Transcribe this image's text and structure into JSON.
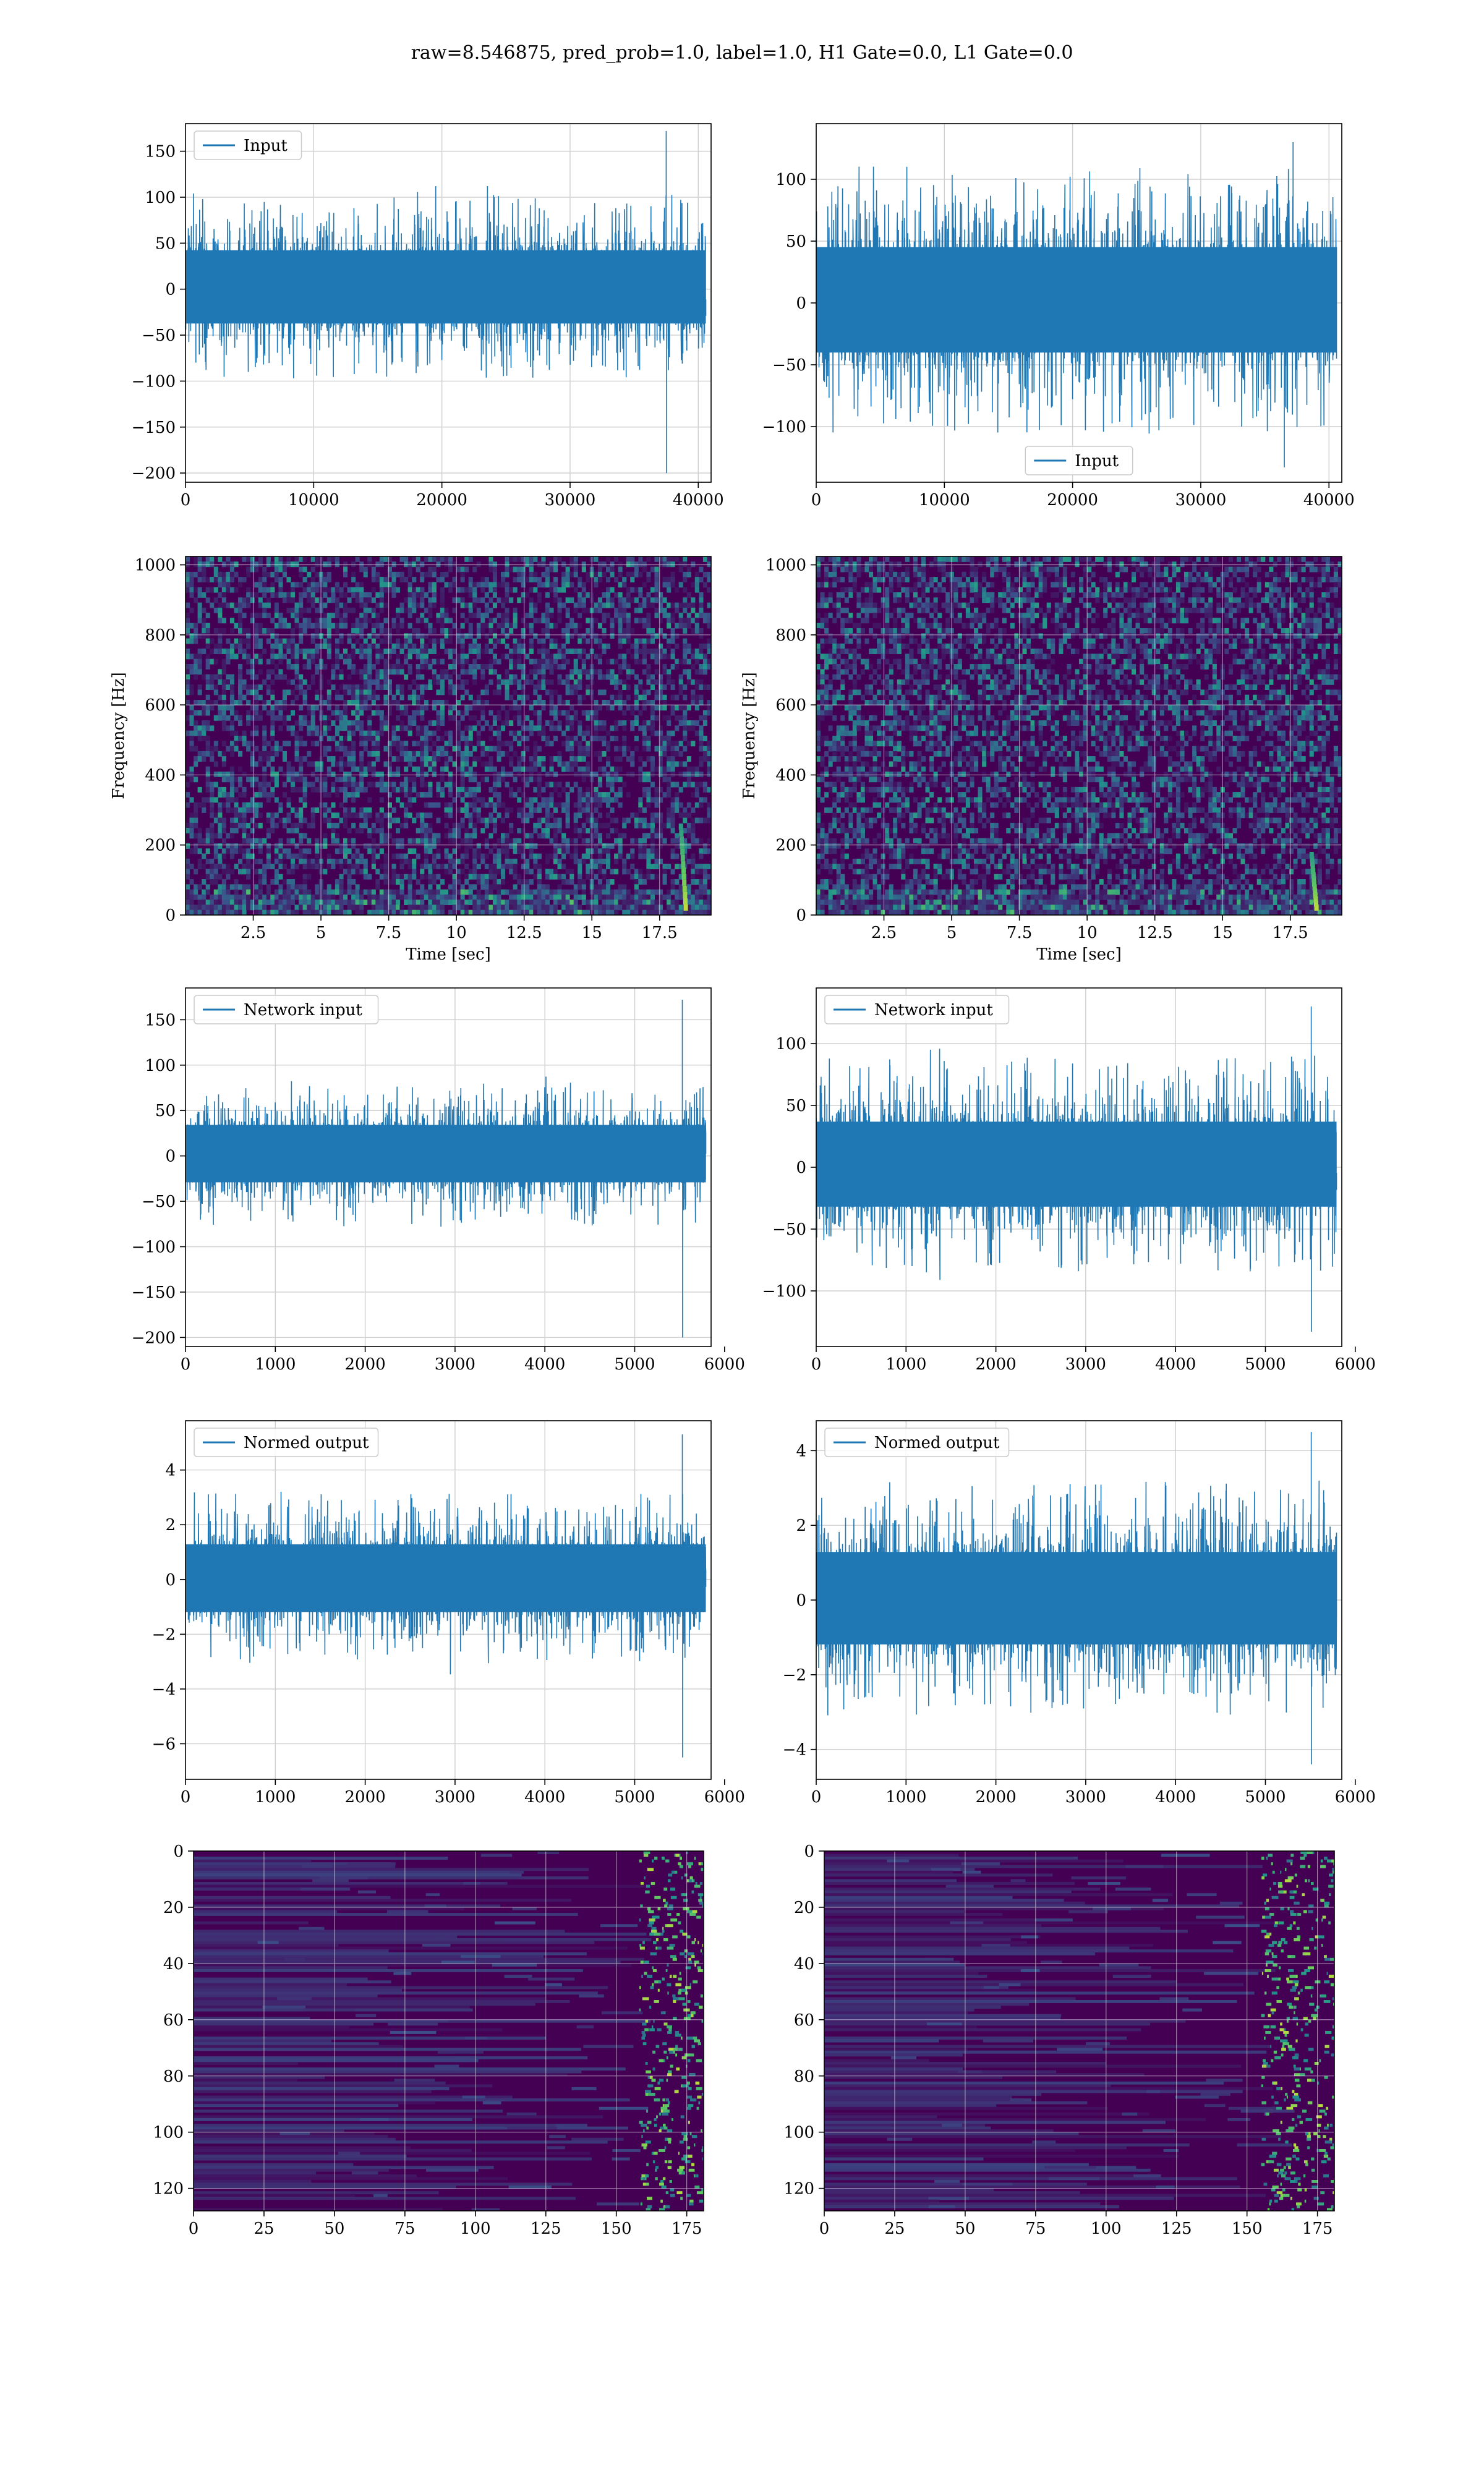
{
  "figure": {
    "title": "raw=8.546875, pred_prob=1.0, label=1.0, H1 Gate=0.0, L1 Gate=0.0"
  },
  "colors": {
    "series": "#1f77b4",
    "grid": "#d0d0d0",
    "axes": "#000000",
    "viridis_dark": "#440154",
    "viridis_mid": "#21918c",
    "viridis_bright": "#fde725"
  },
  "chart_data": [
    {
      "type": "line",
      "panel": "row1-left",
      "series": [
        {
          "name": "Input",
          "envelope": {
            "lo": -70,
            "hi": 75,
            "spikes_hi": [
              [
                37500,
                172
              ]
            ],
            "spikes_lo": [
              [
                37500,
                -200
              ]
            ]
          }
        }
      ],
      "x_range": [
        0,
        41000
      ],
      "ylim": [
        -210,
        180
      ],
      "xticks": [
        0,
        10000,
        20000,
        30000,
        40000
      ],
      "yticks": [
        -200,
        -150,
        -100,
        -50,
        0,
        50,
        100,
        150
      ],
      "xlabel": "",
      "ylabel": "",
      "grid": true,
      "legend": "upper left"
    },
    {
      "type": "line",
      "panel": "row1-right",
      "series": [
        {
          "name": "Input",
          "envelope": {
            "lo": -75,
            "hi": 80,
            "spikes_hi": [
              [
                37200,
                130
              ]
            ],
            "spikes_lo": [
              [
                36500,
                -133
              ]
            ]
          }
        }
      ],
      "x_range": [
        0,
        41000
      ],
      "ylim": [
        -145,
        145
      ],
      "xticks": [
        0,
        10000,
        20000,
        30000,
        40000
      ],
      "yticks": [
        -100,
        -50,
        0,
        50,
        100
      ],
      "xlabel": "",
      "ylabel": "",
      "grid": true,
      "legend": "lower center"
    },
    {
      "type": "heatmap",
      "panel": "row2-left",
      "x_range": [
        0,
        19.4
      ],
      "ylim": [
        0,
        1024
      ],
      "xticks": [
        2.5,
        5.0,
        7.5,
        10.0,
        12.5,
        15.0,
        17.5
      ],
      "yticks": [
        0,
        200,
        400,
        600,
        800,
        1000
      ],
      "xlabel": "Time [sec]",
      "ylabel": "Frequency [Hz]",
      "grid": true,
      "features": [
        {
          "x": 18.3,
          "f_low": 30,
          "f_high": 260
        }
      ]
    },
    {
      "type": "heatmap",
      "panel": "row2-right",
      "x_range": [
        0,
        19.4
      ],
      "ylim": [
        0,
        1024
      ],
      "xticks": [
        2.5,
        5.0,
        7.5,
        10.0,
        12.5,
        15.0,
        17.5
      ],
      "yticks": [
        0,
        200,
        400,
        600,
        800,
        1000
      ],
      "xlabel": "Time [sec]",
      "ylabel": "Frequency [Hz]",
      "grid": true,
      "features": [
        {
          "x": 18.3,
          "f_low": 30,
          "f_high": 180
        }
      ]
    },
    {
      "type": "line",
      "panel": "row3-left",
      "series": [
        {
          "name": "Network input",
          "envelope": {
            "lo": -55,
            "hi": 60,
            "spikes_hi": [
              [
                5530,
                172
              ]
            ],
            "spikes_lo": [
              [
                5530,
                -200
              ]
            ]
          }
        }
      ],
      "x_range": [
        0,
        5850
      ],
      "ylim": [
        -210,
        185
      ],
      "xticks": [
        0,
        1000,
        2000,
        3000,
        4000,
        5000,
        6000
      ],
      "yticks": [
        -200,
        -150,
        -100,
        -50,
        0,
        50,
        100,
        150
      ],
      "xlabel": "",
      "ylabel": "",
      "grid": true,
      "legend": "upper left"
    },
    {
      "type": "line",
      "panel": "row3-right",
      "series": [
        {
          "name": "Network input",
          "envelope": {
            "lo": -60,
            "hi": 65,
            "spikes_hi": [
              [
                5510,
                130
              ]
            ],
            "spikes_lo": [
              [
                5510,
                -133
              ]
            ]
          }
        }
      ],
      "x_range": [
        0,
        5850
      ],
      "ylim": [
        -145,
        145
      ],
      "xticks": [
        0,
        1000,
        2000,
        3000,
        4000,
        5000,
        6000
      ],
      "yticks": [
        -100,
        -50,
        0,
        50,
        100
      ],
      "xlabel": "",
      "ylabel": "",
      "grid": true,
      "legend": "upper left"
    },
    {
      "type": "line",
      "panel": "row4-left",
      "series": [
        {
          "name": "Normed output",
          "envelope": {
            "lo": -2.2,
            "hi": 2.3,
            "spikes_hi": [
              [
                5530,
                5.3
              ]
            ],
            "spikes_lo": [
              [
                5530,
                -6.5
              ]
            ]
          }
        }
      ],
      "x_range": [
        0,
        5850
      ],
      "ylim": [
        -7.3,
        5.8
      ],
      "xticks": [
        0,
        1000,
        2000,
        3000,
        4000,
        5000,
        6000
      ],
      "yticks": [
        -6,
        -4,
        -2,
        0,
        2,
        4
      ],
      "xlabel": "",
      "ylabel": "",
      "grid": true,
      "legend": "upper left"
    },
    {
      "type": "line",
      "panel": "row4-right",
      "series": [
        {
          "name": "Normed output",
          "envelope": {
            "lo": -2.2,
            "hi": 2.3,
            "spikes_hi": [
              [
                5510,
                4.5
              ]
            ],
            "spikes_lo": [
              [
                5510,
                -4.4
              ]
            ]
          }
        }
      ],
      "x_range": [
        0,
        5850
      ],
      "ylim": [
        -4.8,
        4.8
      ],
      "xticks": [
        0,
        1000,
        2000,
        3000,
        4000,
        5000,
        6000
      ],
      "yticks": [
        -4,
        -2,
        0,
        2,
        4
      ],
      "xlabel": "",
      "ylabel": "",
      "grid": true,
      "legend": "upper left"
    },
    {
      "type": "heatmap",
      "panel": "row5-left",
      "x_range": [
        0,
        181
      ],
      "ylim": [
        128,
        0
      ],
      "y_inverted": true,
      "xticks": [
        0,
        25,
        50,
        75,
        100,
        125,
        150,
        175
      ],
      "yticks": [
        0,
        20,
        40,
        60,
        80,
        100,
        120
      ],
      "xlabel": "",
      "ylabel": "",
      "grid": true,
      "features": [
        {
          "x_start": 158,
          "x_end": 181,
          "intensity": "bright"
        }
      ]
    },
    {
      "type": "heatmap",
      "panel": "row5-right",
      "x_range": [
        0,
        181
      ],
      "ylim": [
        128,
        0
      ],
      "y_inverted": true,
      "xticks": [
        0,
        25,
        50,
        75,
        100,
        125,
        150,
        175
      ],
      "yticks": [
        0,
        20,
        40,
        60,
        80,
        100,
        120
      ],
      "xlabel": "",
      "ylabel": "",
      "grid": true,
      "features": [
        {
          "x_start": 155,
          "x_end": 181,
          "intensity": "bright"
        }
      ]
    }
  ]
}
